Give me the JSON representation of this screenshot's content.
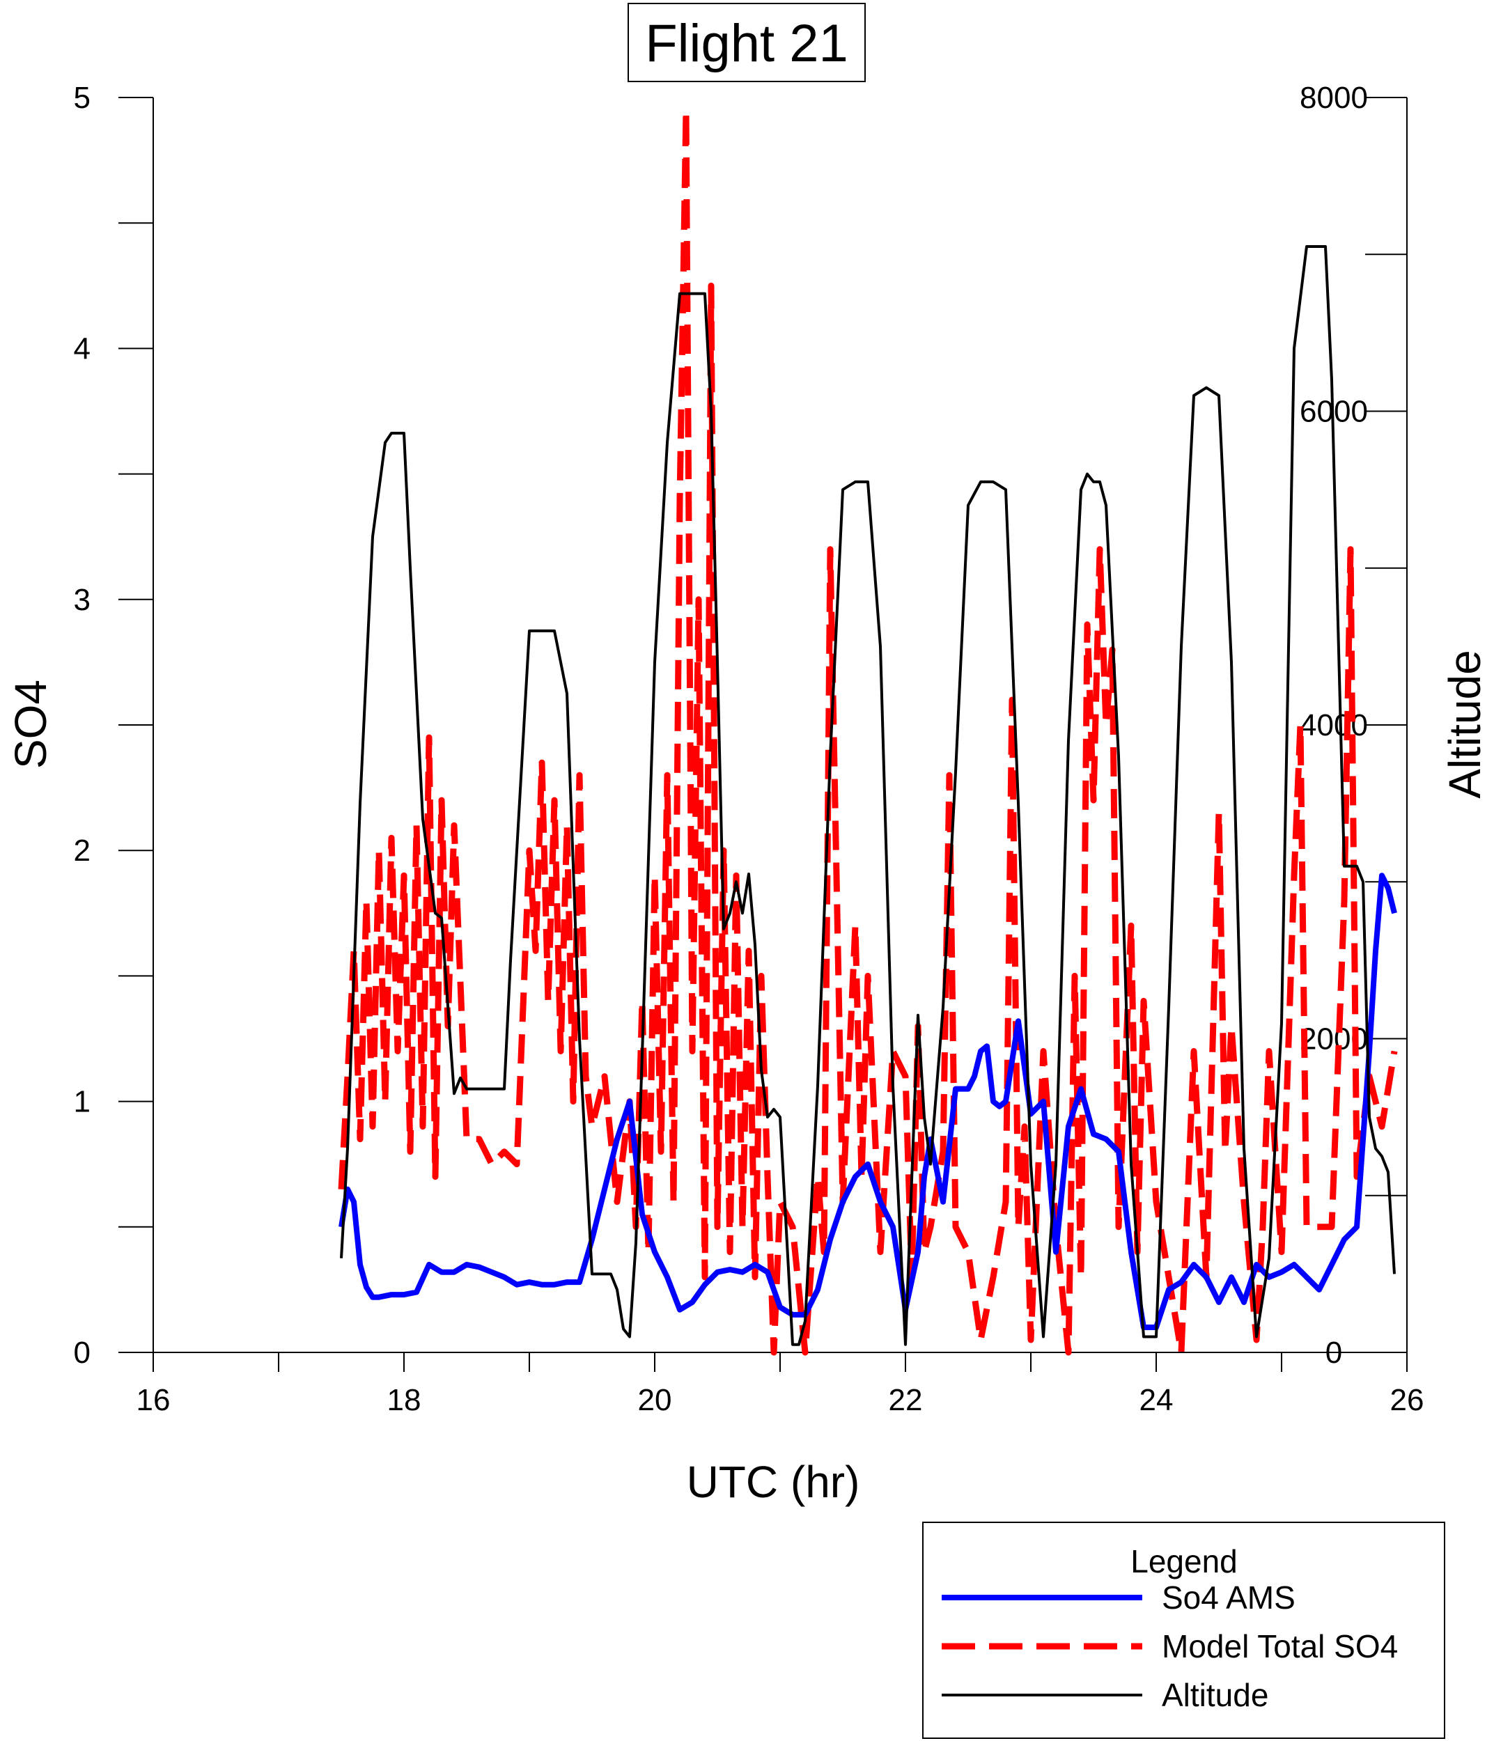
{
  "chart_data": {
    "type": "line",
    "title": "Flight 21",
    "xlabel": "UTC (hr)",
    "ylabel": "SO4",
    "y2label": "Altitude",
    "xlim": [
      16,
      26
    ],
    "ylim": [
      0,
      5
    ],
    "y2lim": [
      0,
      8000
    ],
    "x_ticks": [
      16,
      18,
      20,
      22,
      24,
      26
    ],
    "y_ticks": [
      0,
      1,
      2,
      3,
      4,
      5
    ],
    "y2_ticks": [
      0,
      2000,
      4000,
      6000,
      8000
    ],
    "x_minor_step": 1,
    "y_minor_step": 0.5,
    "y2_minor_step": 1000,
    "legend_title": "Legend",
    "legend_position": "bottom-right, outside plot",
    "grid": false,
    "series": [
      {
        "name": "So4 AMS",
        "axis": "left",
        "color": "#0000ff",
        "style": "solid-thick",
        "x": [
          17.5,
          17.55,
          17.6,
          17.65,
          17.7,
          17.75,
          17.8,
          17.9,
          18.0,
          18.1,
          18.2,
          18.3,
          18.4,
          18.5,
          18.6,
          18.7,
          18.8,
          18.9,
          19.0,
          19.1,
          19.2,
          19.3,
          19.4,
          19.5,
          19.6,
          19.7,
          19.8,
          19.9,
          20.0,
          20.1,
          20.2,
          20.3,
          20.4,
          20.5,
          20.6,
          20.7,
          20.8,
          20.9,
          21.0,
          21.1,
          21.2,
          21.3,
          21.4,
          21.5,
          21.6,
          21.7,
          21.8,
          21.9,
          22.0,
          22.1,
          22.15,
          22.2,
          22.3,
          22.4,
          22.5,
          22.55,
          22.6,
          22.65,
          22.7,
          22.75,
          22.8,
          22.9,
          23.0,
          23.1,
          23.2,
          23.3,
          23.4,
          23.5,
          23.6,
          23.7,
          23.8,
          23.9,
          24.0,
          24.1,
          24.2,
          24.3,
          24.4,
          24.5,
          24.6,
          24.7,
          24.8,
          24.9,
          25.0,
          25.1,
          25.2,
          25.3,
          25.4,
          25.5,
          25.6,
          25.7,
          25.75,
          25.8,
          25.85,
          25.9
        ],
        "values": [
          0.5,
          0.65,
          0.6,
          0.35,
          0.26,
          0.22,
          0.22,
          0.23,
          0.23,
          0.24,
          0.35,
          0.32,
          0.32,
          0.35,
          0.34,
          0.32,
          0.3,
          0.27,
          0.28,
          0.27,
          0.27,
          0.28,
          0.28,
          0.45,
          0.65,
          0.85,
          1.0,
          0.55,
          0.4,
          0.3,
          0.17,
          0.2,
          0.27,
          0.32,
          0.33,
          0.32,
          0.35,
          0.32,
          0.18,
          0.15,
          0.15,
          0.25,
          0.45,
          0.6,
          0.7,
          0.75,
          0.6,
          0.5,
          0.17,
          0.4,
          0.7,
          0.85,
          0.6,
          1.05,
          1.05,
          1.1,
          1.2,
          1.22,
          1.0,
          0.98,
          1.0,
          1.32,
          0.95,
          1.0,
          0.4,
          0.9,
          1.05,
          0.87,
          0.85,
          0.8,
          0.4,
          0.1,
          0.1,
          0.25,
          0.28,
          0.35,
          0.3,
          0.2,
          0.3,
          0.2,
          0.35,
          0.3,
          0.32,
          0.35,
          0.3,
          0.25,
          0.35,
          0.45,
          0.5,
          1.2,
          1.6,
          1.9,
          1.85,
          1.75
        ]
      },
      {
        "name": "Model Total SO4",
        "axis": "left",
        "color": "#ff0000",
        "style": "dashed-thick",
        "x": [
          17.5,
          17.55,
          17.6,
          17.65,
          17.7,
          17.75,
          17.8,
          17.85,
          17.9,
          17.95,
          18.0,
          18.05,
          18.1,
          18.15,
          18.2,
          18.25,
          18.3,
          18.35,
          18.4,
          18.5,
          18.6,
          18.7,
          18.8,
          18.9,
          19.0,
          19.05,
          19.1,
          19.15,
          19.2,
          19.25,
          19.3,
          19.35,
          19.4,
          19.45,
          19.5,
          19.6,
          19.7,
          19.8,
          19.85,
          19.9,
          19.95,
          20.0,
          20.05,
          20.1,
          20.15,
          20.2,
          20.25,
          20.3,
          20.35,
          20.4,
          20.45,
          20.5,
          20.55,
          20.6,
          20.65,
          20.7,
          20.75,
          20.8,
          20.85,
          20.9,
          20.95,
          21.0,
          21.1,
          21.2,
          21.3,
          21.35,
          21.4,
          21.5,
          21.6,
          21.65,
          21.7,
          21.8,
          21.9,
          22.0,
          22.05,
          22.1,
          22.15,
          22.2,
          22.3,
          22.35,
          22.4,
          22.5,
          22.6,
          22.7,
          22.8,
          22.85,
          22.9,
          22.95,
          23.0,
          23.1,
          23.2,
          23.3,
          23.35,
          23.4,
          23.45,
          23.5,
          23.55,
          23.6,
          23.65,
          23.7,
          23.8,
          23.85,
          23.9,
          24.0,
          24.1,
          24.2,
          24.3,
          24.4,
          24.5,
          24.55,
          24.6,
          24.7,
          24.8,
          24.85,
          24.9,
          25.0,
          25.1,
          25.15,
          25.2,
          25.3,
          25.4,
          25.5,
          25.55,
          25.6,
          25.7,
          25.8,
          25.9
        ],
        "values": [
          0.65,
          1.1,
          1.6,
          0.85,
          1.8,
          0.9,
          2.0,
          1.0,
          2.05,
          1.2,
          1.9,
          0.8,
          2.1,
          0.9,
          2.45,
          0.7,
          2.2,
          1.3,
          2.1,
          0.85,
          0.85,
          0.75,
          0.8,
          0.75,
          2.0,
          1.6,
          2.35,
          1.4,
          2.2,
          1.2,
          2.1,
          1.0,
          2.3,
          1.1,
          0.9,
          1.1,
          0.6,
          1.0,
          0.5,
          1.4,
          0.4,
          1.9,
          0.8,
          2.3,
          0.6,
          3.4,
          4.95,
          1.2,
          3.0,
          0.3,
          4.25,
          0.5,
          2.0,
          0.4,
          1.9,
          0.5,
          1.6,
          0.3,
          1.5,
          0.7,
          0.0,
          0.6,
          0.5,
          0.0,
          0.7,
          0.4,
          3.2,
          0.6,
          1.7,
          0.7,
          1.5,
          0.4,
          1.2,
          1.1,
          0.3,
          1.3,
          0.4,
          0.5,
          0.8,
          2.3,
          0.5,
          0.4,
          0.05,
          0.3,
          0.6,
          2.6,
          0.5,
          0.9,
          0.05,
          1.2,
          0.5,
          0.0,
          1.5,
          0.3,
          2.9,
          2.2,
          3.2,
          2.5,
          2.8,
          0.5,
          1.7,
          0.4,
          1.4,
          0.6,
          0.3,
          0.0,
          1.2,
          0.3,
          2.15,
          0.8,
          1.3,
          0.6,
          0.05,
          0.5,
          1.2,
          0.4,
          1.9,
          2.5,
          0.5,
          0.5,
          0.5,
          1.8,
          3.2,
          0.7,
          1.1,
          0.9,
          1.2
        ]
      },
      {
        "name": "Altitude",
        "axis": "right",
        "color": "#000000",
        "style": "solid-thin",
        "x": [
          17.5,
          17.55,
          17.65,
          17.75,
          17.85,
          17.9,
          18.0,
          18.05,
          18.15,
          18.25,
          18.3,
          18.4,
          18.45,
          18.5,
          18.6,
          18.8,
          18.85,
          19.0,
          19.1,
          19.2,
          19.3,
          19.4,
          19.5,
          19.6,
          19.65,
          19.7,
          19.75,
          19.8,
          19.85,
          19.9,
          20.0,
          20.1,
          20.2,
          20.3,
          20.4,
          20.45,
          20.5,
          20.55,
          20.6,
          20.65,
          20.7,
          20.75,
          20.8,
          20.85,
          20.9,
          20.95,
          21.0,
          21.1,
          21.15,
          21.2,
          21.3,
          21.4,
          21.5,
          21.6,
          21.7,
          21.8,
          21.9,
          22.0,
          22.1,
          22.15,
          22.2,
          22.3,
          22.4,
          22.5,
          22.6,
          22.7,
          22.8,
          22.9,
          23.0,
          23.1,
          23.2,
          23.3,
          23.4,
          23.45,
          23.5,
          23.55,
          23.6,
          23.7,
          23.8,
          23.9,
          24.0,
          24.1,
          24.2,
          24.3,
          24.4,
          24.5,
          24.6,
          24.7,
          24.8,
          24.9,
          25.0,
          25.1,
          25.2,
          25.3,
          25.35,
          25.4,
          25.5,
          25.6,
          25.65,
          25.7,
          25.75,
          25.8,
          25.85,
          25.9
        ],
        "values": [
          600,
          1300,
          3500,
          5200,
          5800,
          5860,
          5860,
          5000,
          3400,
          2800,
          2770,
          1650,
          1750,
          1680,
          1680,
          1680,
          2500,
          4600,
          4600,
          4600,
          4200,
          2000,
          500,
          500,
          500,
          400,
          150,
          100,
          700,
          1900,
          4400,
          5800,
          6750,
          6750,
          6750,
          6000,
          4400,
          2700,
          2800,
          3000,
          2800,
          3050,
          2600,
          1800,
          1500,
          1550,
          1500,
          50,
          50,
          200,
          1700,
          3800,
          5500,
          5550,
          5550,
          4500,
          1700,
          50,
          2150,
          1500,
          1200,
          2200,
          3700,
          5400,
          5550,
          5550,
          5500,
          3500,
          1200,
          100,
          1200,
          3900,
          5500,
          5600,
          5550,
          5550,
          5400,
          3800,
          1200,
          100,
          100,
          2200,
          4500,
          6100,
          6150,
          6100,
          4400,
          1300,
          100,
          600,
          2100,
          6400,
          7050,
          7050,
          7050,
          6200,
          3100,
          3100,
          3000,
          1500,
          1300,
          1250,
          1150,
          500
        ]
      }
    ]
  }
}
